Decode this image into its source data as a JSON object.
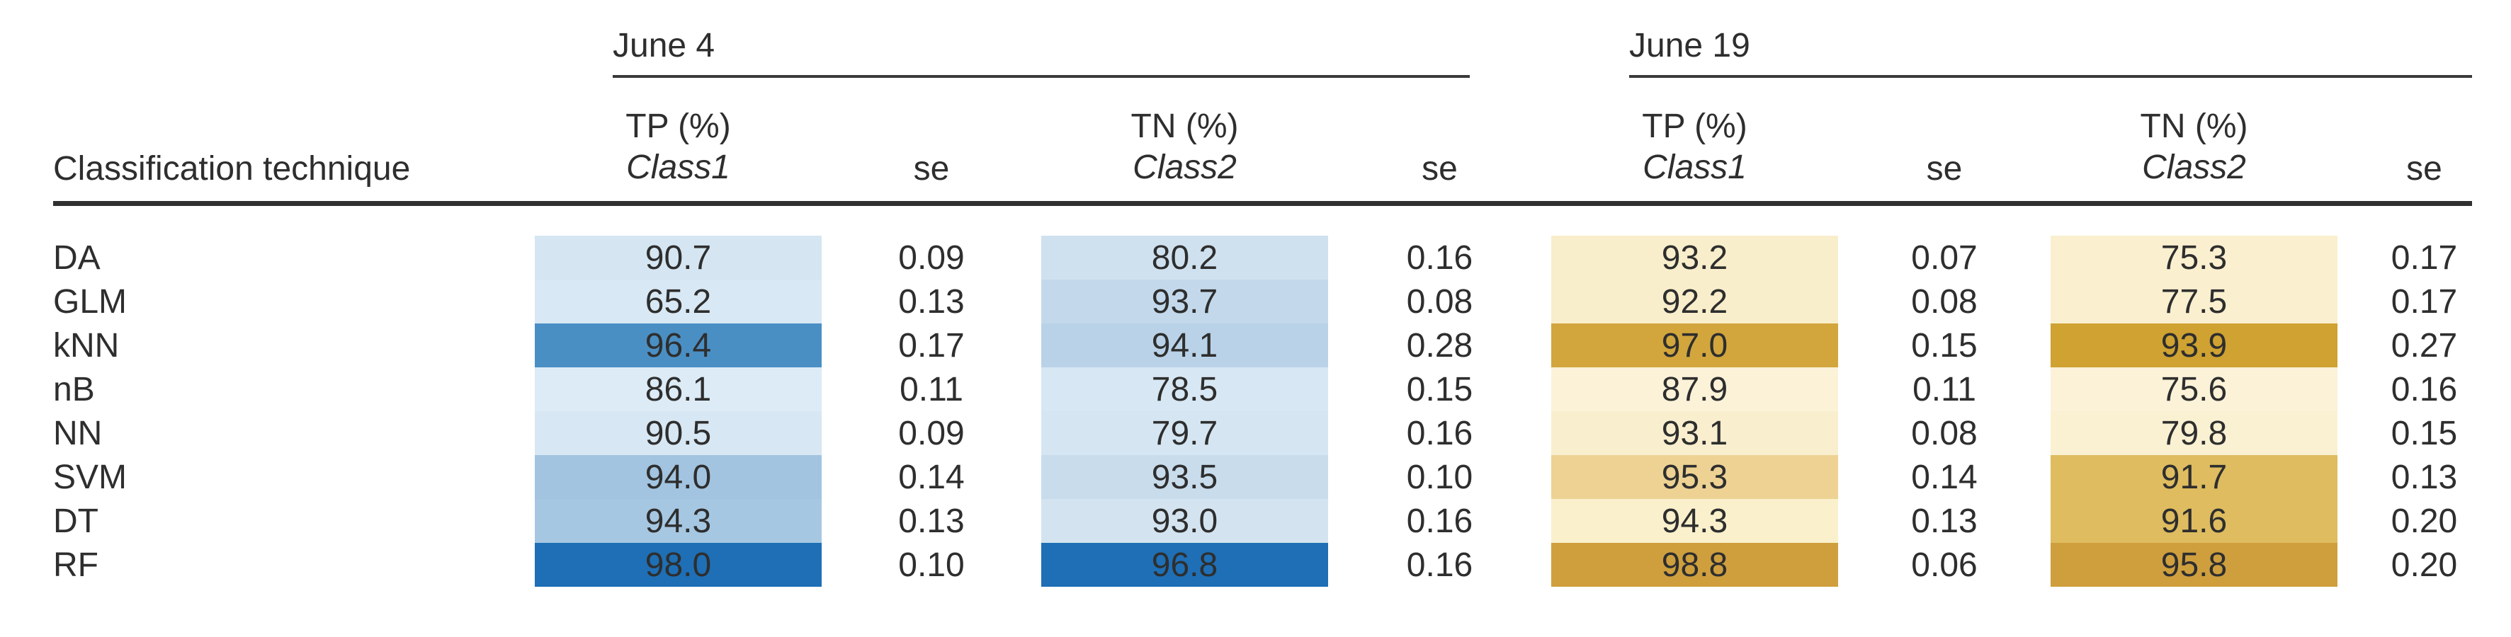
{
  "table": {
    "row_header_label": "Classification technique",
    "se_label": "se",
    "rule_color": "#3a3a3a",
    "groups": [
      {
        "label": "June 4",
        "tp_metric": "TP (%)",
        "tp_class": "Class1",
        "tn_metric": "TN (%)",
        "tn_class": "Class2"
      },
      {
        "label": "June 19",
        "tp_metric": "TP (%)",
        "tp_class": "Class1",
        "tn_metric": "TN (%)",
        "tn_class": "Class2"
      }
    ],
    "rows": [
      {
        "technique": "DA",
        "june4": {
          "tp": "90.7",
          "tp_bg": "#d5e6f2",
          "se1": "0.09",
          "tn": "80.2",
          "tn_bg": "#cfe1ef",
          "se2": "0.16"
        },
        "june19": {
          "tp": "93.2",
          "tp_bg": "#f9eecb",
          "se1": "0.07",
          "tn": "75.3",
          "tn_bg": "#faf0cf",
          "se2": "0.17"
        }
      },
      {
        "technique": "GLM",
        "june4": {
          "tp": "65.2",
          "tp_bg": "#d8e8f4",
          "se1": "0.13",
          "tn": "93.7",
          "tn_bg": "#c3d9eb",
          "se2": "0.08"
        },
        "june19": {
          "tp": "92.2",
          "tp_bg": "#f9eecb",
          "se1": "0.08",
          "tn": "77.5",
          "tn_bg": "#faf0cf",
          "se2": "0.17"
        }
      },
      {
        "technique": "kNN",
        "june4": {
          "tp": "96.4",
          "tp_bg": "#4a8fc4",
          "se1": "0.17",
          "tn": "94.1",
          "tn_bg": "#b9d2e8",
          "se2": "0.28"
        },
        "june19": {
          "tp": "97.0",
          "tp_bg": "#d2a63c",
          "se1": "0.15",
          "tn": "93.9",
          "tn_bg": "#cfa231",
          "se2": "0.27"
        }
      },
      {
        "technique": "nB",
        "june4": {
          "tp": "86.1",
          "tp_bg": "#dcebf6",
          "se1": "0.11",
          "tn": "78.5",
          "tn_bg": "#d7e7f3",
          "se2": "0.15"
        },
        "june19": {
          "tp": "87.9",
          "tp_bg": "#fbf2d8",
          "se1": "0.11",
          "tn": "75.6",
          "tn_bg": "#fbf2d8",
          "se2": "0.16"
        }
      },
      {
        "technique": "NN",
        "june4": {
          "tp": "90.5",
          "tp_bg": "#d7e7f3",
          "se1": "0.09",
          "tn": "79.7",
          "tn_bg": "#d5e6f2",
          "se2": "0.16"
        },
        "june19": {
          "tp": "93.1",
          "tp_bg": "#f9efcf",
          "se1": "0.08",
          "tn": "79.8",
          "tn_bg": "#faf1d3",
          "se2": "0.15"
        }
      },
      {
        "technique": "SVM",
        "june4": {
          "tp": "94.0",
          "tp_bg": "#a2c4e0",
          "se1": "0.14",
          "tn": "93.5",
          "tn_bg": "#c8dcec",
          "se2": "0.10"
        },
        "june19": {
          "tp": "95.3",
          "tp_bg": "#edd294",
          "se1": "0.14",
          "tn": "91.7",
          "tn_bg": "#debc5f",
          "se2": "0.13"
        }
      },
      {
        "technique": "DT",
        "june4": {
          "tp": "94.3",
          "tp_bg": "#a6c7e2",
          "se1": "0.13",
          "tn": "93.0",
          "tn_bg": "#d3e4f0",
          "se2": "0.16"
        },
        "june19": {
          "tp": "94.3",
          "tp_bg": "#faf0cc",
          "se1": "0.13",
          "tn": "91.6",
          "tn_bg": "#debc5f",
          "se2": "0.20"
        }
      },
      {
        "technique": "RF",
        "june4": {
          "tp": "98.0",
          "tp_bg": "#1e6fb5",
          "se1": "0.10",
          "tn": "96.8",
          "tn_bg": "#1e6fb5",
          "se2": "0.16"
        },
        "june19": {
          "tp": "98.8",
          "tp_bg": "#cf9f3e",
          "se1": "0.06",
          "tn": "95.8",
          "tn_bg": "#cf9f3e",
          "se2": "0.20"
        }
      }
    ]
  },
  "chart_data": {
    "type": "table",
    "row_header": "Classification technique",
    "column_groups": [
      "June 4",
      "June 19"
    ],
    "columns": [
      "June 4 TP (%) Class1",
      "June 4 se",
      "June 4 TN (%) Class2",
      "June 4 se",
      "June 19 TP (%) Class1",
      "June 19 se",
      "June 19 TN (%) Class2",
      "June 19 se"
    ],
    "rows": [
      {
        "technique": "DA",
        "values": [
          90.7,
          0.09,
          80.2,
          0.16,
          93.2,
          0.07,
          75.3,
          0.17
        ]
      },
      {
        "technique": "GLM",
        "values": [
          65.2,
          0.13,
          93.7,
          0.08,
          92.2,
          0.08,
          77.5,
          0.17
        ]
      },
      {
        "technique": "kNN",
        "values": [
          96.4,
          0.17,
          94.1,
          0.28,
          97.0,
          0.15,
          93.9,
          0.27
        ]
      },
      {
        "technique": "nB",
        "values": [
          86.1,
          0.11,
          78.5,
          0.15,
          87.9,
          0.11,
          75.6,
          0.16
        ]
      },
      {
        "technique": "NN",
        "values": [
          90.5,
          0.09,
          79.7,
          0.16,
          93.1,
          0.08,
          79.8,
          0.15
        ]
      },
      {
        "technique": "SVM",
        "values": [
          94.0,
          0.14,
          93.5,
          0.1,
          95.3,
          0.14,
          91.7,
          0.13
        ]
      },
      {
        "technique": "DT",
        "values": [
          94.3,
          0.13,
          93.0,
          0.16,
          94.3,
          0.13,
          91.6,
          0.2
        ]
      },
      {
        "technique": "RF",
        "values": [
          98.0,
          0.1,
          96.8,
          0.16,
          98.8,
          0.06,
          95.8,
          0.2
        ]
      }
    ],
    "layout_hints": {
      "heatmap_shading": "cell background encodes value magnitude",
      "june4_palette_accent": "#1e6fb5",
      "june19_palette_accent": "#cf9f3e"
    }
  }
}
